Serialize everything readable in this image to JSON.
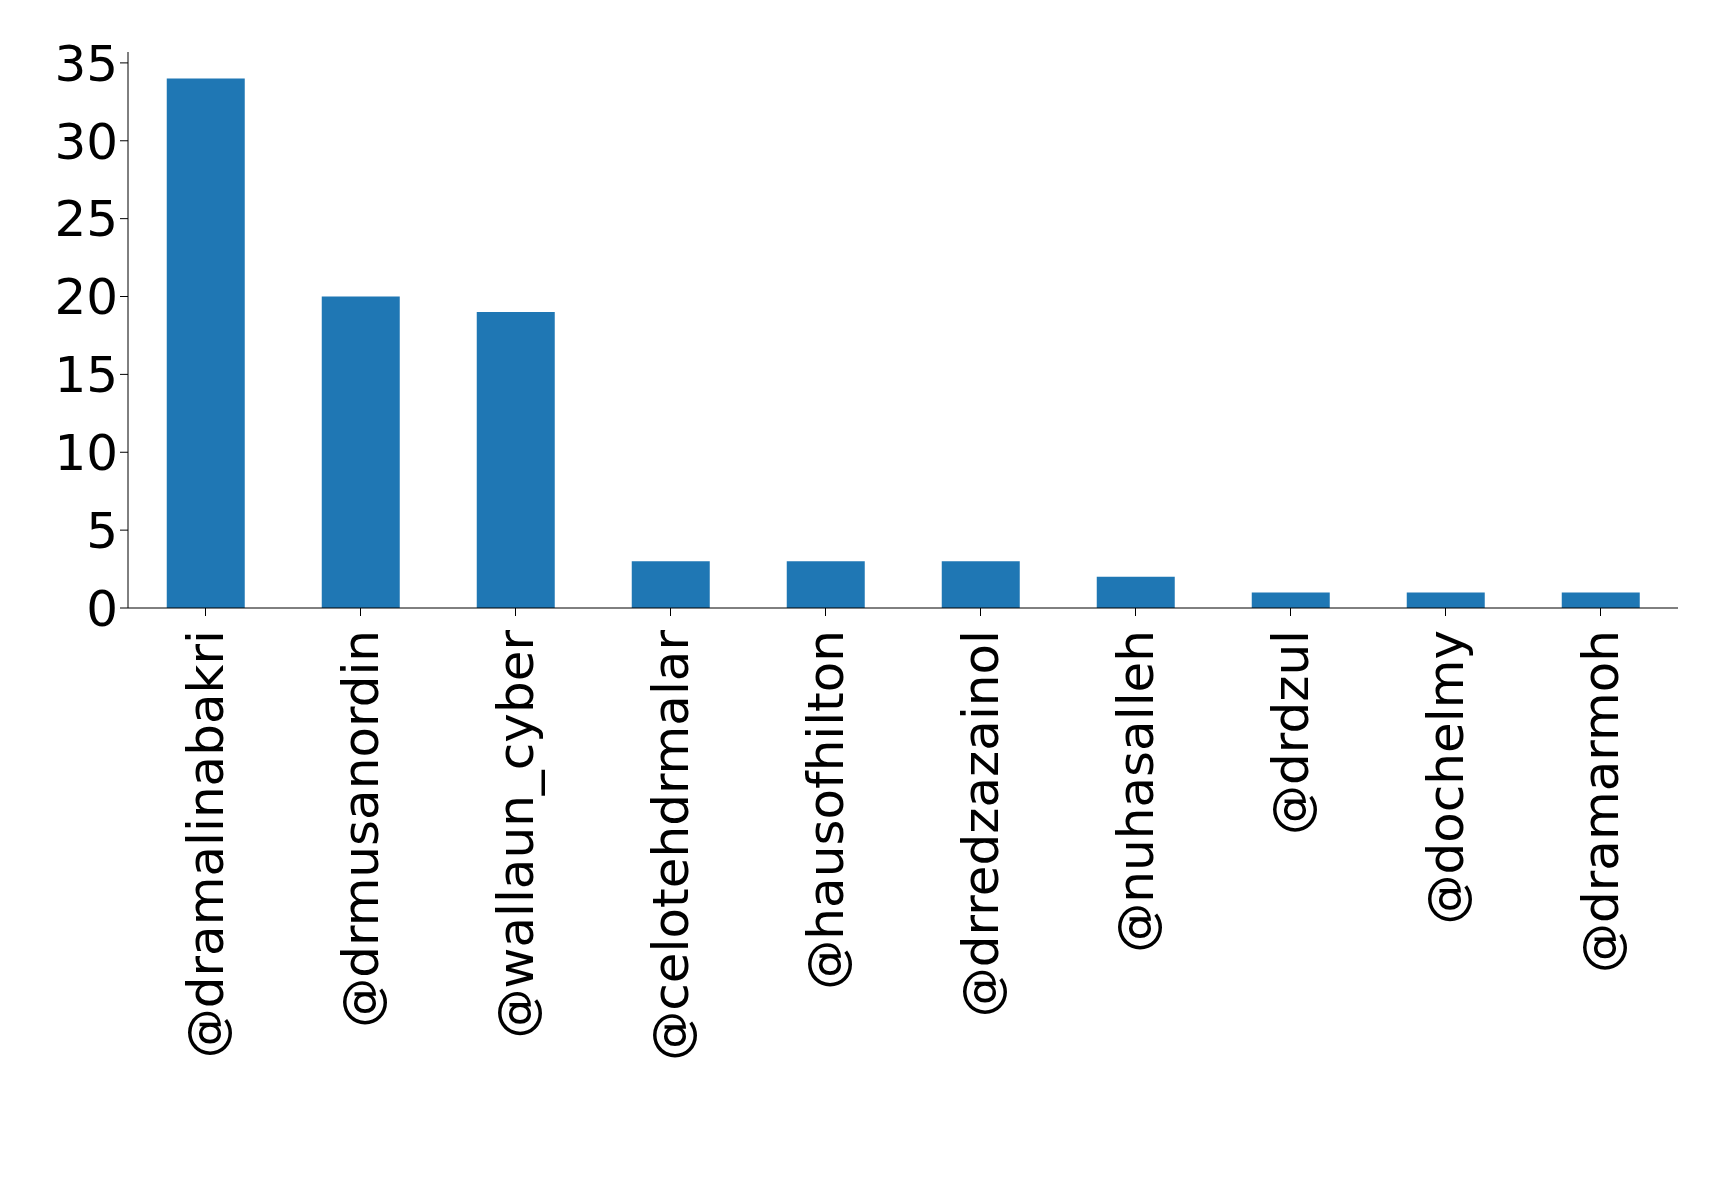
{
  "chart_data": {
    "type": "bar",
    "categories": [
      "@dramalinabakri",
      "@drmusanordin",
      "@wallaun_cyber",
      "@celotehdrmalar",
      "@hausofhilton",
      "@drredzazainol",
      "@nuhasalleh",
      "@drdzul",
      "@dochelmy",
      "@dramarmoh"
    ],
    "values": [
      34,
      20,
      19,
      3,
      3,
      3,
      2,
      1,
      1,
      1
    ],
    "color": "#1f77b4",
    "ylim": [
      0,
      35.7
    ],
    "yticks": [
      0,
      5,
      10,
      15,
      20,
      25,
      30,
      35
    ],
    "grid": false
  }
}
